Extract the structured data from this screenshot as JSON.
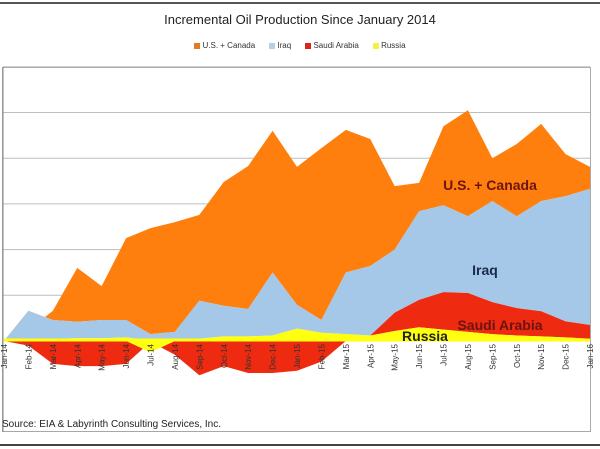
{
  "chart_data": {
    "type": "area",
    "title": "Incremental Oil Production Since January 2014",
    "xlabel": "",
    "ylabel": "",
    "y_units": "gridline intervals (no tick labels shown)",
    "ylim": [
      -0.9,
      6
    ],
    "grid": true,
    "legend_position": "top-center",
    "categories": [
      "Jan-14",
      "Feb-14",
      "Mar-14",
      "Apr-14",
      "May-14",
      "Jun-14",
      "Jul-14",
      "Aug-14",
      "Sep-14",
      "Oct-14",
      "Nov-14",
      "Dec-14",
      "Jan-15",
      "Feb-15",
      "Mar-15",
      "Apr-15",
      "May-15",
      "Jun-15",
      "Jul-15",
      "Aug-15",
      "Sep-15",
      "Oct-15",
      "Nov-15",
      "Dec-15",
      "Jan-16"
    ],
    "series": [
      {
        "name": "U.S. + Canada",
        "color": "#ff7f0e",
        "label": "U.S. + Canada",
        "stack_top": [
          0,
          0.24,
          0.66,
          1.6,
          1.2,
          2.25,
          2.47,
          2.6,
          2.76,
          3.48,
          3.83,
          4.6,
          3.81,
          4.22,
          4.62,
          4.42,
          3.39,
          3.46,
          4.7,
          5.05,
          4.0,
          4.31,
          4.75,
          4.09,
          3.81
        ]
      },
      {
        "name": "Iraq",
        "color": "#a6c8e8",
        "label": "Iraq",
        "stack_top": [
          0,
          0.66,
          0.46,
          0.42,
          0.46,
          0.46,
          0.15,
          0.2,
          0.88,
          0.77,
          0.7,
          1.5,
          0.79,
          0.46,
          1.5,
          1.64,
          2.0,
          2.84,
          2.97,
          2.73,
          3.06,
          2.73,
          3.06,
          3.17,
          3.33
        ]
      },
      {
        "name": "Saudi Arabia",
        "color": "#ee2a10",
        "label": "Saudi Arabia",
        "values": [
          0,
          -0.1,
          -0.5,
          -0.55,
          -0.55,
          -0.5,
          -0.02,
          -0.3,
          -0.75,
          -0.55,
          -0.7,
          -0.7,
          -0.65,
          -0.45,
          0,
          0,
          0.4,
          0.6,
          0.82,
          0.85,
          0.7,
          0.6,
          0.55,
          0.35,
          0.3
        ]
      },
      {
        "name": "Russia",
        "color": "#ffff10",
        "label": "Russia",
        "values": [
          0,
          0.03,
          0.05,
          0.06,
          0.06,
          0.08,
          -0.25,
          0.04,
          0.05,
          0.1,
          0.1,
          0.12,
          0.27,
          0.18,
          0.15,
          0.12,
          0.22,
          0.3,
          0.25,
          0.2,
          0.15,
          0.12,
          0.1,
          0.08,
          0.05
        ]
      }
    ],
    "annotations": [
      "U.S. + Canada",
      "Iraq",
      "Saudi Arabia",
      "Russia"
    ]
  },
  "source": "Source: EIA & Labyrinth Consulting Services, Inc."
}
